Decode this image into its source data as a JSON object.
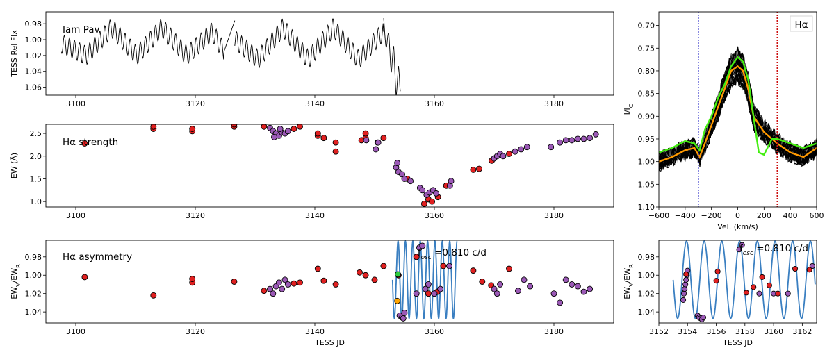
{
  "chart_data": [
    {
      "id": "lc",
      "type": "line",
      "annotation": "Iam Pav",
      "ylabel": "TESS Rel Flx",
      "xlabel": "",
      "xlim": [
        3095,
        3190
      ],
      "ylim": [
        0.965,
        1.07
      ],
      "xticks": [
        "3100",
        "3120",
        "3140",
        "3160",
        "3180"
      ],
      "yticks": [
        "0.98",
        "1.00",
        "1.02",
        "1.04",
        "1.06"
      ],
      "segments": [
        {
          "x": [
            3097.6,
            3101.8,
            3106.0,
            3110.2,
            3114.4,
            3118.6,
            3122.8,
            3124.8
          ],
          "y": [
            1.005,
            1.02,
            0.985,
            1.02,
            0.985,
            1.02,
            0.99,
            1.015
          ]
        },
        {
          "x": [
            3124.8,
            3126.6
          ],
          "y": [
            1.015,
            0.976
          ]
        },
        {
          "x": [
            3126.6,
            3130.5,
            3134.7,
            3138.9,
            3143.1,
            3147.3,
            3151.5
          ],
          "y": [
            1.0,
            1.025,
            0.985,
            1.025,
            0.985,
            1.025,
            0.99
          ]
        },
        {
          "x": [
            3151.5,
            3152.0,
            3152.4,
            3152.8,
            3153.2,
            3153.6,
            3154.0,
            3154.3
          ],
          "y": [
            0.985,
            1.0,
            1.005,
            1.03,
            1.02,
            1.06,
            1.045,
            1.065
          ]
        }
      ]
    },
    {
      "id": "ew",
      "type": "scatter",
      "annotation": "Hα strength",
      "ylabel": "EW (Å)",
      "xlabel": "",
      "xlim": [
        3095,
        3190
      ],
      "ylim": [
        2.7,
        0.88
      ],
      "xticks": [
        "3100",
        "3120",
        "3140",
        "3160",
        "3180"
      ],
      "yticks": [
        "1.0",
        "1.5",
        "2.0",
        "2.5"
      ],
      "series": [
        {
          "name": "red",
          "color": "#e02020",
          "x": [
            3101.5,
            3113.0,
            3113.0,
            3119.5,
            3119.5,
            3126.5,
            3126.5,
            3131.5,
            3136.5,
            3137.5,
            3140.5,
            3140.5,
            3141.5,
            3143.5,
            3143.5,
            3147.8,
            3148.5,
            3148.5,
            3150.5,
            3151.5,
            3155.5,
            3158.3,
            3159.0,
            3159.6,
            3160.6,
            3162.0,
            3166.5,
            3167.5,
            3169.6,
            3172.5
          ],
          "y": [
            2.28,
            2.6,
            2.65,
            2.55,
            2.6,
            2.65,
            2.7,
            2.65,
            2.6,
            2.65,
            2.45,
            2.5,
            2.4,
            2.1,
            2.3,
            2.35,
            2.4,
            2.5,
            2.3,
            2.4,
            1.5,
            0.95,
            1.05,
            1.0,
            1.1,
            1.35,
            1.7,
            1.72,
            1.9,
            2.05
          ]
        },
        {
          "name": "purple",
          "color": "#9b59b6",
          "x": [
            3132.5,
            3133.0,
            3133.5,
            3134.0,
            3134.5,
            3135.0,
            3135.5,
            3133.2,
            3134.2,
            3148.6,
            3150.2,
            3150.6,
            3153.6,
            3153.8,
            3154.0,
            3154.6,
            3155.0,
            3156.0,
            3157.6,
            3158.0,
            3158.7,
            3159.2,
            3159.8,
            3160.3,
            3162.6,
            3162.8,
            3170.0,
            3170.5,
            3171.0,
            3171.5,
            3173.5,
            3174.5,
            3175.5,
            3179.5,
            3181.0,
            3182.0,
            3183.0,
            3184.0,
            3185.0,
            3186.0,
            3187.0
          ],
          "y": [
            2.62,
            2.55,
            2.5,
            2.45,
            2.52,
            2.5,
            2.55,
            2.42,
            2.6,
            2.35,
            2.15,
            2.3,
            1.75,
            1.85,
            1.65,
            1.6,
            1.5,
            1.45,
            1.3,
            1.25,
            1.15,
            1.2,
            1.25,
            1.18,
            1.35,
            1.45,
            1.95,
            2.0,
            2.05,
            2.0,
            2.1,
            2.15,
            2.2,
            2.2,
            2.3,
            2.35,
            2.35,
            2.38,
            2.38,
            2.4,
            2.48
          ]
        }
      ]
    },
    {
      "id": "asym",
      "type": "scatter",
      "annotation": "Hα asymmetry",
      "ylabel": "EWV/EWR",
      "xlabel": "TESS JD",
      "xlim": [
        3095,
        3190
      ],
      "ylim": [
        0.962,
        1.052
      ],
      "xticks": [
        "3100",
        "3120",
        "3140",
        "3160",
        "3180"
      ],
      "yticks": [
        "0.98",
        "1.00",
        "1.02",
        "1.04"
      ],
      "fit_label": "fosc =0.810 c/d",
      "fit": {
        "t0": 3153.0,
        "t1": 3163.8,
        "freq": 0.81,
        "mean": 1.005,
        "amp": 0.042
      },
      "series": [
        {
          "name": "red",
          "color": "#e02020",
          "x": [
            3101.5,
            3113.0,
            3119.5,
            3119.5,
            3126.5,
            3131.5,
            3136.5,
            3137.5,
            3140.5,
            3141.5,
            3143.5,
            3147.5,
            3148.5,
            3150.0,
            3151.5,
            3154.0,
            3157.0,
            3159.0,
            3160.5,
            3161.5,
            3166.5,
            3168.0,
            3169.5,
            3172.5
          ],
          "y": [
            1.002,
            1.022,
            1.008,
            1.004,
            1.007,
            1.017,
            1.009,
            1.008,
            0.993,
            1.006,
            1.01,
            0.997,
            1.0,
            1.005,
            0.99,
            1.0,
            0.98,
            1.02,
            1.018,
            0.99,
            0.995,
            1.007,
            1.011,
            0.993
          ]
        },
        {
          "name": "purple",
          "color": "#9b59b6",
          "x": [
            3132.5,
            3133.0,
            3133.5,
            3134.0,
            3134.5,
            3135.0,
            3135.5,
            3154.2,
            3154.6,
            3154.8,
            3155.0,
            3157.0,
            3157.5,
            3158.0,
            3158.5,
            3159.0,
            3160.0,
            3161.0,
            3162.5,
            3170.0,
            3170.5,
            3171.0,
            3174.0,
            3175.0,
            3176.0,
            3180.0,
            3181.0,
            3182.0,
            3183.0,
            3184.0,
            3185.0,
            3186.0
          ],
          "y": [
            1.015,
            1.02,
            1.012,
            1.008,
            1.015,
            1.005,
            1.01,
            1.044,
            1.046,
            1.047,
            1.041,
            1.02,
            0.97,
            0.968,
            1.015,
            1.01,
            1.02,
            1.015,
            0.99,
            1.015,
            1.02,
            1.01,
            1.017,
            1.005,
            1.012,
            1.02,
            1.03,
            1.005,
            1.01,
            1.012,
            1.018,
            1.015
          ]
        },
        {
          "name": "orange",
          "color": "#ffa500",
          "x": [
            3153.8
          ],
          "y": [
            1.028
          ]
        },
        {
          "name": "green",
          "color": "#2ecc40",
          "x": [
            3153.9
          ],
          "y": [
            0.999
          ]
        }
      ]
    },
    {
      "id": "halpha",
      "type": "line",
      "annotation": "Hα",
      "ylabel": "I/IC",
      "xlabel": "Vel. (km/s)",
      "xlim": [
        -600,
        600
      ],
      "ylim": [
        0.67,
        1.1
      ],
      "xticks": [
        "−600",
        "−400",
        "−200",
        "0",
        "200",
        "400",
        "600"
      ],
      "yticks": [
        "0.70",
        "0.75",
        "0.80",
        "0.85",
        "0.90",
        "0.95",
        "1.00",
        "1.05",
        "1.10"
      ],
      "vlines": [
        {
          "x": -300,
          "color": "#1010c0"
        },
        {
          "x": 300,
          "color": "#cc1010"
        }
      ],
      "series": [
        {
          "name": "orange",
          "color": "#ff9900",
          "x": [
            -600,
            -500,
            -400,
            -330,
            -290,
            -250,
            -200,
            -150,
            -100,
            -50,
            0,
            40,
            80,
            120,
            200,
            300,
            400,
            500,
            600
          ],
          "y": [
            1.0,
            0.99,
            0.975,
            0.97,
            0.99,
            0.96,
            0.92,
            0.88,
            0.84,
            0.8,
            0.79,
            0.8,
            0.84,
            0.9,
            0.935,
            0.96,
            0.98,
            0.99,
            0.97
          ]
        },
        {
          "name": "green",
          "color": "#44ee11",
          "x": [
            -600,
            -500,
            -400,
            -330,
            -290,
            -250,
            -200,
            -150,
            -100,
            -50,
            0,
            40,
            80,
            120,
            160,
            200,
            260,
            300,
            400,
            500,
            600
          ],
          "y": [
            0.98,
            0.97,
            0.955,
            0.96,
            0.975,
            0.93,
            0.9,
            0.86,
            0.83,
            0.79,
            0.77,
            0.78,
            0.82,
            0.9,
            0.98,
            0.985,
            0.95,
            0.95,
            0.96,
            0.97,
            0.96
          ]
        }
      ]
    },
    {
      "id": "zoom",
      "type": "scatter",
      "annotation": "",
      "ylabel": "EWV/EWR",
      "xlabel": "TESS JD",
      "xlim": [
        3152,
        3163
      ],
      "ylim": [
        0.962,
        1.052
      ],
      "xticks": [
        "3152",
        "3154",
        "3156",
        "3158",
        "3160",
        "3162"
      ],
      "yticks": [
        "0.98",
        "1.00",
        "1.02",
        "1.04"
      ],
      "fit_label": "fosc =0.810 c/d",
      "fit": {
        "t0": 3153.0,
        "t1": 3162.9,
        "freq": 0.81,
        "mean": 1.005,
        "amp": 0.042
      },
      "series": [
        {
          "name": "purple",
          "color": "#9b59b6",
          "x": [
            3153.7,
            3153.75,
            3153.8,
            3153.85,
            3153.9,
            3153.95,
            3154.0,
            3154.7,
            3154.8,
            3154.9,
            3155.0,
            3155.1,
            3157.6,
            3157.8,
            3159.0,
            3160.0,
            3161.0,
            3162.7
          ],
          "y": [
            1.027,
            1.02,
            1.015,
            1.01,
            1.005,
            1.0,
            0.995,
            1.044,
            1.046,
            1.047,
            1.048,
            1.046,
            0.972,
            0.967,
            1.02,
            1.02,
            1.02,
            0.99
          ]
        },
        {
          "name": "red",
          "color": "#e02020",
          "x": [
            3153.9,
            3156.0,
            3156.1,
            3158.1,
            3158.6,
            3159.2,
            3159.7,
            3160.3,
            3161.5,
            3162.5
          ],
          "y": [
            0.999,
            1.006,
            0.996,
            1.019,
            1.013,
            1.002,
            1.011,
            1.02,
            0.993,
            0.994
          ]
        }
      ]
    }
  ]
}
